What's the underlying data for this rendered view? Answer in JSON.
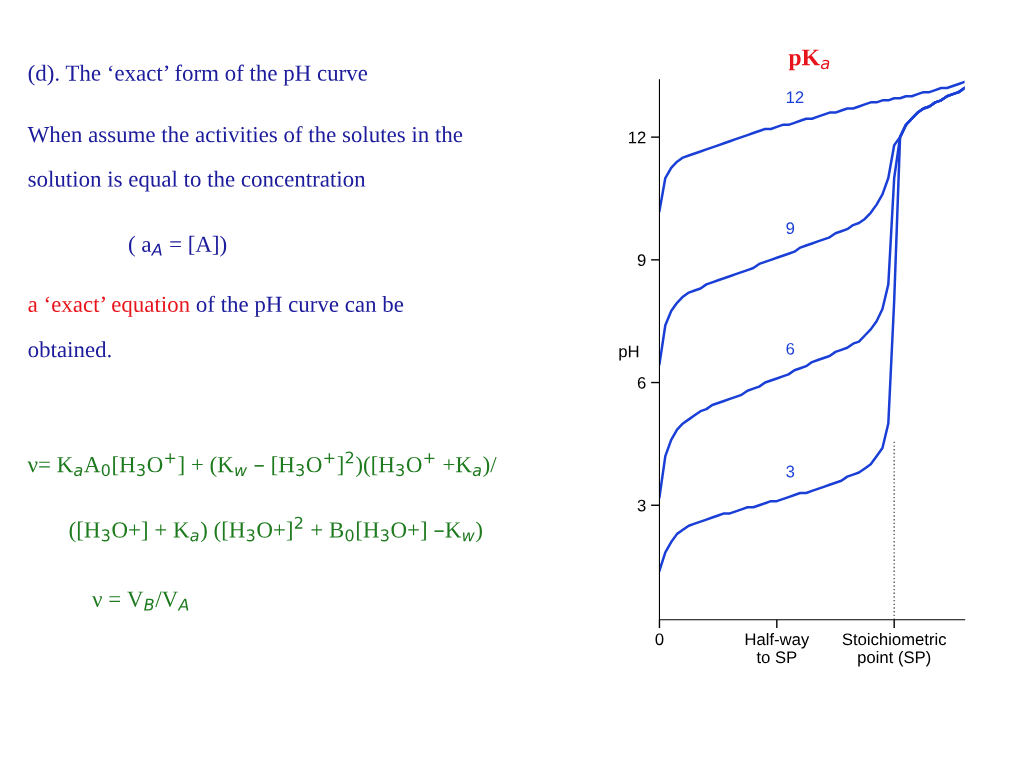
{
  "chart_data": {
    "type": "line",
    "title": "(d). The ‘exact’ form of the pH curve",
    "ylabel": "pH",
    "legend_title": "pK$_{a}$",
    "annotations": [
      "When assume the activities of the solutes in the",
      "solution is equal to the concentration",
      "( a$_{A}$ = [A])",
      "a ‘exact’ equation",
      "of the pH curve can be",
      "obtained.",
      "ν= K$_{a}$A$_{0}$[H$_{3}$O$^{+}$] + (K$_{w}$ – [H$_{3}$O$^{+}$]$^{2}$)([H$_{3}$O$^{+}$ +K$_{a}$)/",
      "([H$_{3}$O+] + K$_{a}$) ([H$_{3}$O+]$^{2}$ + B$_{0}$[H$_{3}$O+] –K$_{w}$)",
      "ν = V$_{B}$/V$_{A}$"
    ],
    "categories": [
      "0",
      null,
      null,
      null,
      null,
      null,
      null,
      null,
      null,
      null,
      null,
      null,
      null,
      null,
      null,
      null,
      null,
      null,
      null,
      null,
      "Half-way\nto SP",
      null,
      null,
      null,
      null,
      null,
      null,
      null,
      null,
      null,
      null,
      null,
      null,
      null,
      null,
      null,
      null,
      null,
      null,
      null,
      "Stoichiometric\npoint (SP)",
      null,
      null,
      null,
      null,
      null,
      null,
      null,
      null,
      null,
      null,
      null,
      null
    ],
    "ylim": [
      0.2,
      13.4
    ],
    "yticks": [
      3,
      6,
      9,
      12
    ],
    "grid": false,
    "legend": false,
    "marker": "none",
    "line_style": "solid",
    "ref_lines": [
      {
        "axis": "x",
        "value": "Stoichiometric\npoint (SP)",
        "label": null,
        "line_style": "dotted",
        "color": "#555555"
      }
    ],
    "series": [
      {
        "name": "12",
        "color": "#1a3fd6",
        "values": [
          10.2,
          11.0,
          11.25,
          11.4,
          11.5,
          11.55,
          11.6,
          11.65,
          11.7,
          11.75,
          11.8,
          11.85,
          11.9,
          11.95,
          12.0,
          12.05,
          12.1,
          12.15,
          12.2,
          12.2,
          12.25,
          12.3,
          12.3,
          12.35,
          12.4,
          12.45,
          12.45,
          12.5,
          12.55,
          12.6,
          12.6,
          12.65,
          12.7,
          12.7,
          12.75,
          12.8,
          12.85,
          12.85,
          12.9,
          12.9,
          12.95,
          12.95,
          13.0,
          13.0,
          13.05,
          13.1,
          13.1,
          13.15,
          13.2,
          13.2,
          13.25,
          13.3,
          13.35
        ]
      },
      {
        "name": "9",
        "color": "#1a3fd6",
        "values": [
          6.45,
          7.4,
          7.75,
          7.95,
          8.1,
          8.2,
          8.25,
          8.3,
          8.4,
          8.45,
          8.5,
          8.55,
          8.6,
          8.65,
          8.7,
          8.75,
          8.8,
          8.9,
          8.95,
          9.0,
          9.05,
          9.1,
          9.15,
          9.2,
          9.3,
          9.35,
          9.4,
          9.45,
          9.5,
          9.55,
          9.65,
          9.7,
          9.75,
          9.85,
          9.9,
          10.0,
          10.15,
          10.35,
          10.6,
          11.0,
          11.8,
          12.0,
          12.3,
          12.45,
          12.6,
          12.7,
          12.75,
          12.85,
          12.9,
          13.0,
          13.05,
          13.1,
          13.2
        ]
      },
      {
        "name": "6",
        "color": "#1a3fd6",
        "values": [
          3.2,
          4.2,
          4.6,
          4.85,
          5.0,
          5.1,
          5.2,
          5.3,
          5.35,
          5.45,
          5.5,
          5.55,
          5.6,
          5.65,
          5.7,
          5.8,
          5.85,
          5.9,
          6.0,
          6.05,
          6.1,
          6.15,
          6.2,
          6.3,
          6.35,
          6.4,
          6.5,
          6.55,
          6.6,
          6.65,
          6.75,
          6.8,
          6.85,
          6.95,
          7.0,
          7.15,
          7.3,
          7.5,
          7.8,
          8.4,
          11.0,
          12.0,
          12.3,
          12.45,
          12.6,
          12.7,
          12.75,
          12.85,
          12.9,
          13.0,
          13.05,
          13.1,
          13.2
        ]
      },
      {
        "name": "3",
        "color": "#1a3fd6",
        "values": [
          1.4,
          1.85,
          2.1,
          2.3,
          2.4,
          2.5,
          2.55,
          2.6,
          2.65,
          2.7,
          2.75,
          2.8,
          2.8,
          2.85,
          2.9,
          2.95,
          2.95,
          3.0,
          3.05,
          3.1,
          3.1,
          3.15,
          3.2,
          3.25,
          3.3,
          3.3,
          3.35,
          3.4,
          3.45,
          3.5,
          3.55,
          3.6,
          3.7,
          3.75,
          3.8,
          3.9,
          4.0,
          4.2,
          4.4,
          5.0,
          8.0,
          12.0,
          12.3,
          12.45,
          12.6,
          12.7,
          12.75,
          12.85,
          12.9,
          13.0,
          13.05,
          13.1,
          13.2
        ]
      }
    ]
  }
}
